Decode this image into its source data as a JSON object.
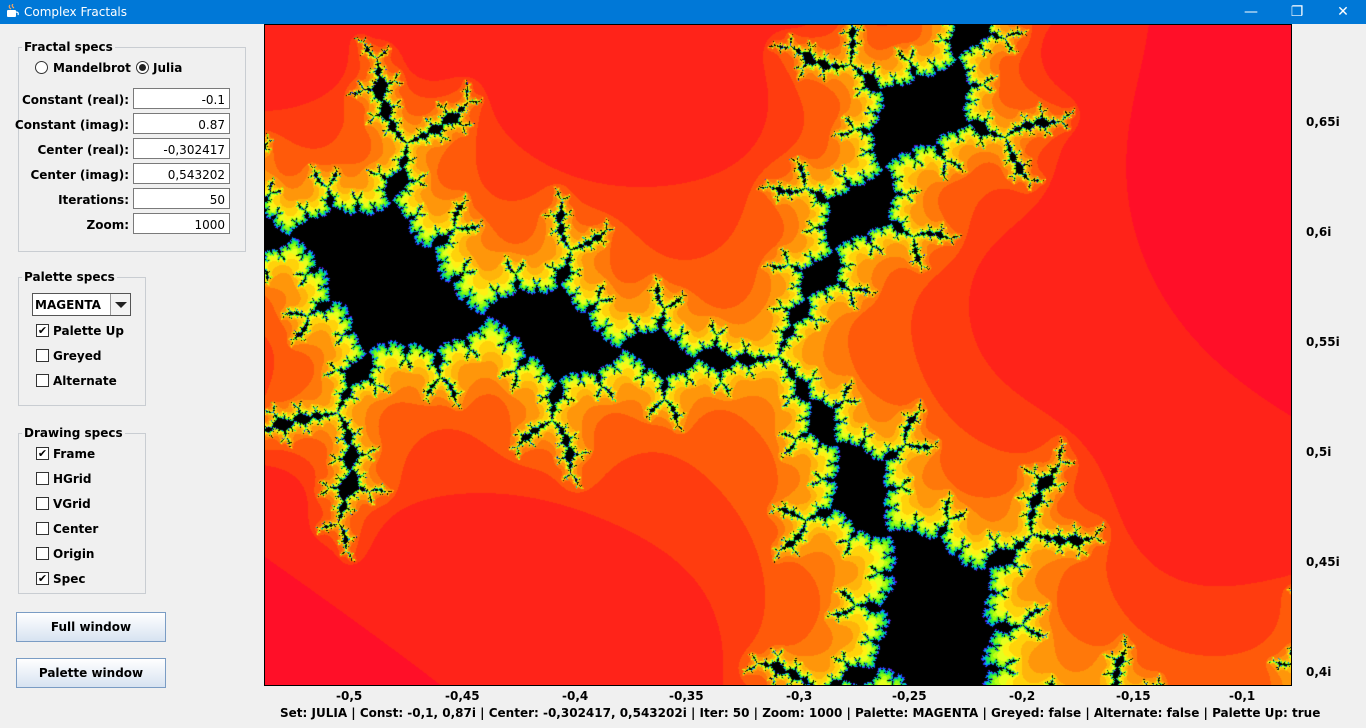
{
  "window": {
    "title": "Complex Fractals",
    "minimize_icon": "—",
    "maximize_icon": "❐",
    "close_icon": "✕"
  },
  "fractal_specs": {
    "legend": "Fractal specs",
    "set_options": [
      {
        "label": "Mandelbrot",
        "selected": false
      },
      {
        "label": "Julia",
        "selected": true
      }
    ],
    "fields": [
      {
        "label": "Constant (real):",
        "value": "-0.1"
      },
      {
        "label": "Constant (imag):",
        "value": "0.87"
      },
      {
        "label": "Center (real):",
        "value": "-0,302417"
      },
      {
        "label": "Center (imag):",
        "value": "0,543202"
      },
      {
        "label": "Iterations:",
        "value": "50"
      },
      {
        "label": "Zoom:",
        "value": "1000"
      }
    ]
  },
  "palette_specs": {
    "legend": "Palette specs",
    "palette": "MAGENTA",
    "options": [
      {
        "label": "Palette Up",
        "checked": true,
        "mark": "✔"
      },
      {
        "label": "Greyed",
        "checked": false,
        "mark": ""
      },
      {
        "label": "Alternate",
        "checked": false,
        "mark": ""
      }
    ]
  },
  "drawing_specs": {
    "legend": "Drawing specs",
    "options": [
      {
        "label": "Frame",
        "checked": true,
        "mark": "✔"
      },
      {
        "label": "HGrid",
        "checked": false,
        "mark": ""
      },
      {
        "label": "VGrid",
        "checked": false,
        "mark": ""
      },
      {
        "label": "Center",
        "checked": false,
        "mark": ""
      },
      {
        "label": "Origin",
        "checked": false,
        "mark": ""
      },
      {
        "label": "Spec",
        "checked": true,
        "mark": "✔"
      }
    ]
  },
  "buttons": {
    "full_window": "Full window",
    "palette_window": "Palette window"
  },
  "axes": {
    "x_ticks": [
      "-0,5",
      "-0,45",
      "-0,4",
      "-0,35",
      "-0,3",
      "-0,25",
      "-0,2",
      "-0,15",
      "-0,1"
    ],
    "y_ticks": [
      "0,65i",
      "0,6i",
      "0,55i",
      "0,5i",
      "0,45i",
      "0,4i"
    ]
  },
  "status": "Set: JULIA | Const: -0,1, 0,87i | Center: -0,302417, 0,543202i | Iter: 50 | Zoom: 1000 | Palette: MAGENTA | Greyed: false | Alternate: false | Palette Up: true"
}
